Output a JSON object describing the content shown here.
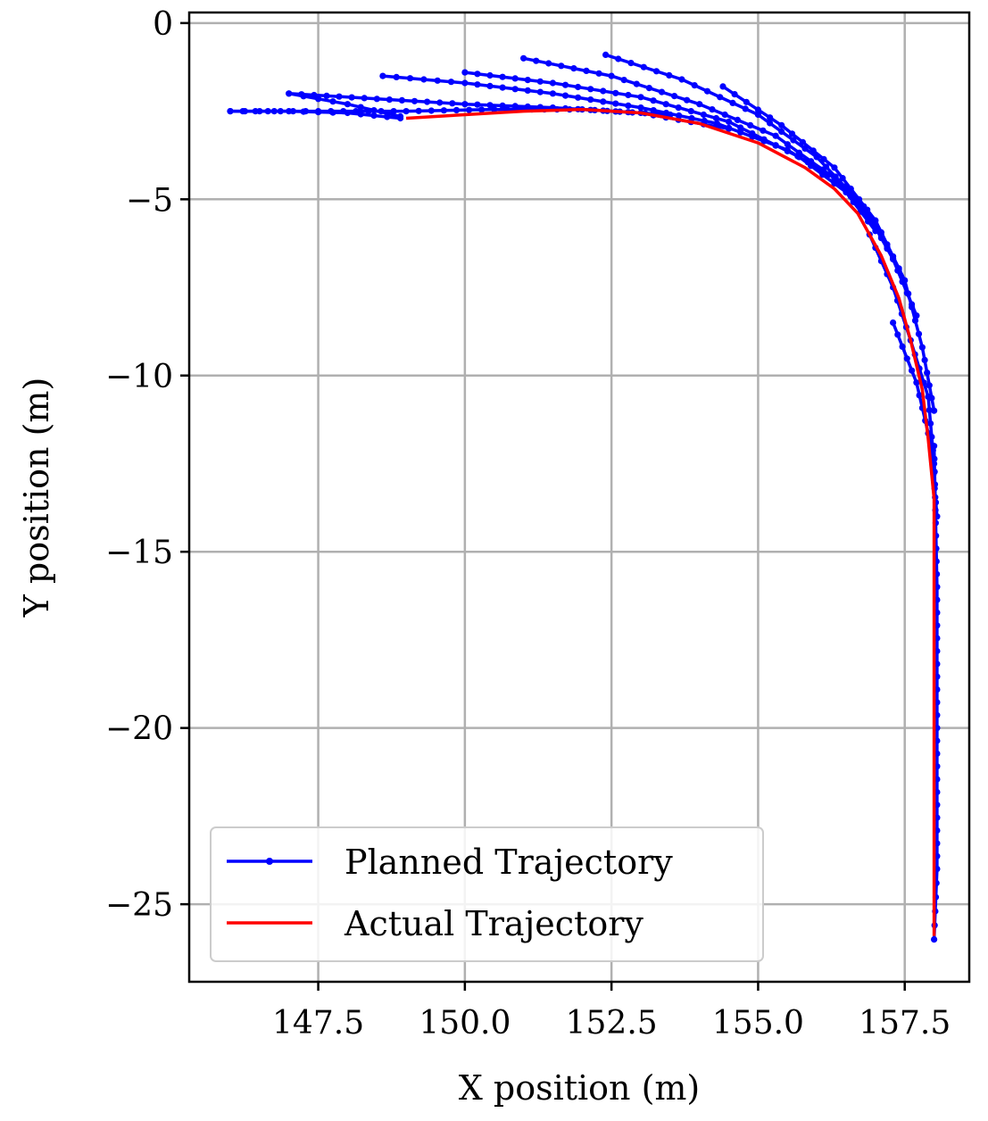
{
  "chart_data": {
    "type": "line",
    "title": "",
    "xlabel": "X position (m)",
    "ylabel": "Y position (m)",
    "xlim": [
      145.3,
      158.6
    ],
    "ylim": [
      -27.2,
      0.3
    ],
    "xticks": [
      147.5,
      150.0,
      152.5,
      155.0,
      157.5
    ],
    "xtick_labels": [
      "147.5",
      "150.0",
      "152.5",
      "155.0",
      "157.5"
    ],
    "yticks": [
      0,
      -5,
      -10,
      -15,
      -20,
      -25
    ],
    "ytick_labels": [
      "0",
      "−5",
      "−10",
      "−15",
      "−20",
      "−25"
    ],
    "grid": true,
    "legend": {
      "position": "lower-left",
      "entries": [
        {
          "label": "Planned Trajectory",
          "color": "#0000ff",
          "marker": "dot"
        },
        {
          "label": "Actual Trajectory",
          "color": "#ff0000",
          "marker": "none"
        }
      ]
    },
    "series": [
      {
        "name": "Actual Trajectory",
        "color": "#ff0000",
        "points": [
          [
            149.0,
            -2.7
          ],
          [
            150.0,
            -2.6
          ],
          [
            151.0,
            -2.5
          ],
          [
            152.0,
            -2.45
          ],
          [
            153.0,
            -2.55
          ],
          [
            154.0,
            -2.85
          ],
          [
            155.0,
            -3.4
          ],
          [
            155.8,
            -4.1
          ],
          [
            156.3,
            -4.7
          ],
          [
            156.7,
            -5.4
          ],
          [
            157.1,
            -6.6
          ],
          [
            157.4,
            -7.8
          ],
          [
            157.6,
            -9.0
          ],
          [
            157.8,
            -10.4
          ],
          [
            157.9,
            -11.8
          ],
          [
            158.0,
            -13.5
          ],
          [
            158.0,
            -16.0
          ],
          [
            158.0,
            -20.0
          ],
          [
            158.0,
            -24.0
          ],
          [
            158.0,
            -25.9
          ]
        ]
      }
    ],
    "planned_paths": [
      [
        [
          146.0,
          -2.5
        ],
        [
          147.5,
          -2.5
        ],
        [
          149.0,
          -2.5
        ],
        [
          150.5,
          -2.45
        ],
        [
          152.0,
          -2.45
        ],
        [
          153.5,
          -2.6
        ]
      ],
      [
        [
          147.0,
          -2.0
        ],
        [
          148.5,
          -2.15
        ],
        [
          150.0,
          -2.3
        ],
        [
          151.5,
          -2.4
        ],
        [
          153.0,
          -2.55
        ],
        [
          154.5,
          -3.0
        ]
      ],
      [
        [
          148.6,
          -1.5
        ],
        [
          150.0,
          -1.7
        ],
        [
          151.5,
          -2.0
        ],
        [
          153.0,
          -2.4
        ],
        [
          154.3,
          -2.85
        ],
        [
          155.5,
          -3.6
        ],
        [
          156.2,
          -4.3
        ]
      ],
      [
        [
          150.0,
          -1.4
        ],
        [
          151.5,
          -1.7
        ],
        [
          153.0,
          -2.1
        ],
        [
          154.5,
          -2.8
        ],
        [
          155.7,
          -3.8
        ],
        [
          156.5,
          -4.8
        ],
        [
          157.0,
          -5.9
        ]
      ],
      [
        [
          151.0,
          -1.0
        ],
        [
          152.5,
          -1.5
        ],
        [
          154.0,
          -2.3
        ],
        [
          155.3,
          -3.2
        ],
        [
          156.3,
          -4.4
        ],
        [
          157.0,
          -5.7
        ],
        [
          157.4,
          -7.0
        ]
      ],
      [
        [
          152.4,
          -0.9
        ],
        [
          153.7,
          -1.6
        ],
        [
          155.0,
          -2.6
        ],
        [
          156.0,
          -3.8
        ],
        [
          156.8,
          -5.2
        ],
        [
          157.3,
          -6.7
        ],
        [
          157.7,
          -8.3
        ]
      ],
      [
        [
          154.4,
          -1.8
        ],
        [
          155.4,
          -2.9
        ],
        [
          156.3,
          -4.1
        ],
        [
          157.0,
          -5.6
        ],
        [
          157.5,
          -7.3
        ],
        [
          157.8,
          -9.2
        ],
        [
          158.0,
          -11.0
        ]
      ],
      [
        [
          146.0,
          -2.5
        ],
        [
          147.0,
          -2.5
        ],
        [
          148.0,
          -2.55
        ],
        [
          148.9,
          -2.7
        ]
      ],
      [
        [
          147.0,
          -2.0
        ],
        [
          148.0,
          -2.3
        ],
        [
          148.9,
          -2.65
        ]
      ],
      [
        [
          156.9,
          -6.0
        ],
        [
          157.3,
          -7.5
        ],
        [
          157.6,
          -9.0
        ],
        [
          157.9,
          -10.6
        ],
        [
          158.0,
          -12.5
        ]
      ],
      [
        [
          157.3,
          -8.5
        ],
        [
          157.7,
          -10.2
        ],
        [
          157.95,
          -12.0
        ],
        [
          158.05,
          -14.0
        ]
      ],
      [
        [
          158.0,
          -12.0
        ],
        [
          158.05,
          -16.0
        ],
        [
          158.05,
          -20.0
        ],
        [
          158.05,
          -24.0
        ],
        [
          158.0,
          -26.0
        ]
      ]
    ]
  }
}
